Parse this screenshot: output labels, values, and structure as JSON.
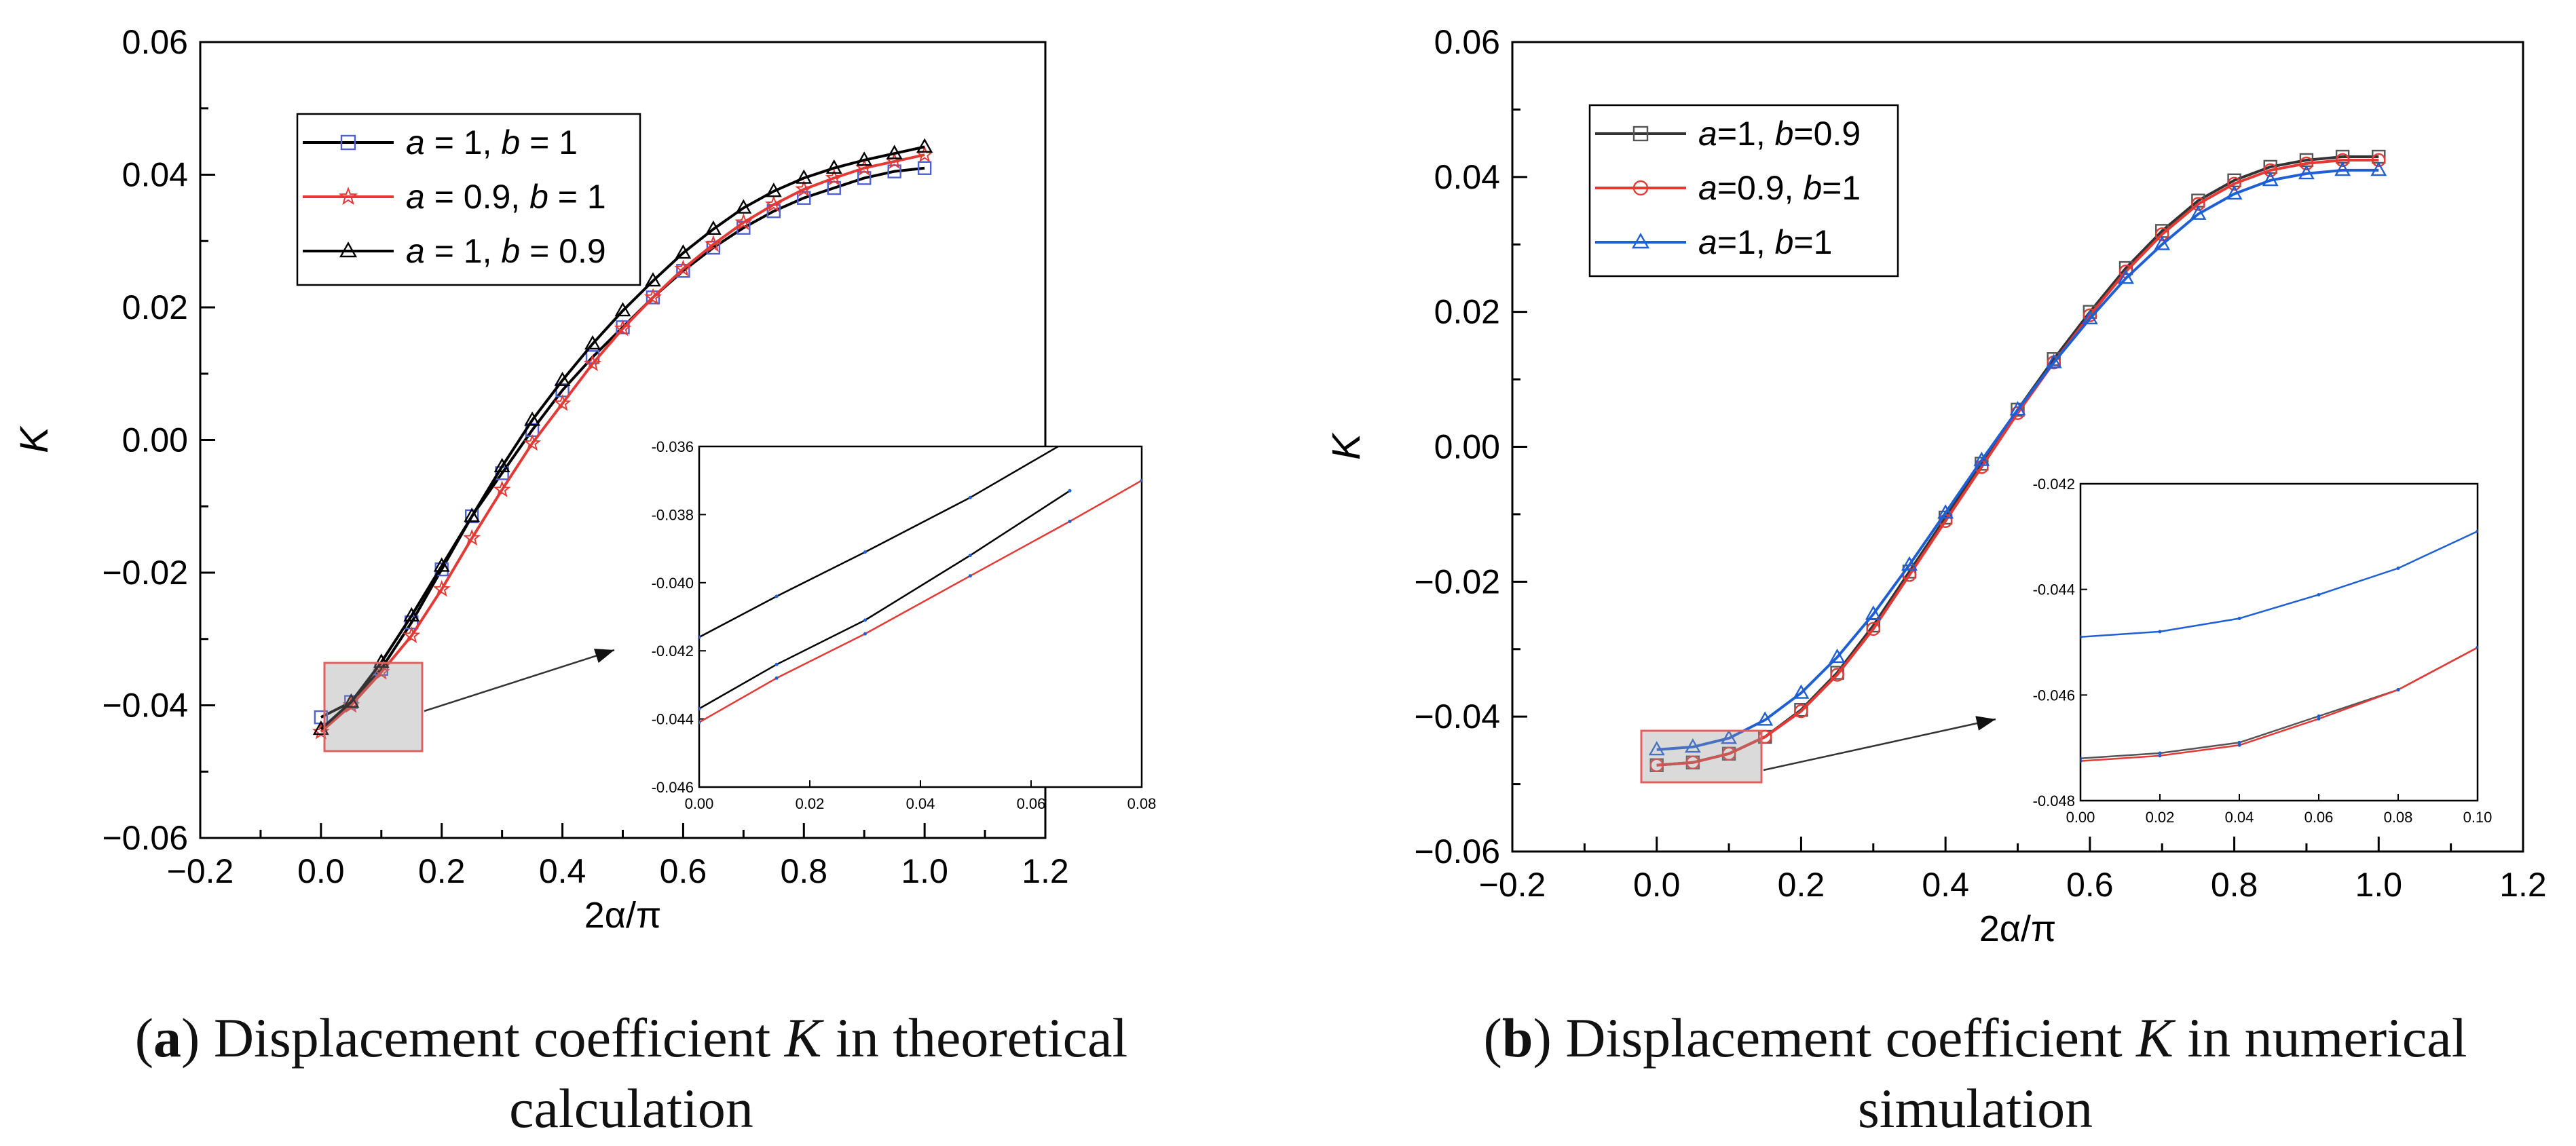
{
  "chart_data": [
    {
      "type": "line",
      "caption": {
        "letter": "a",
        "text_before": "Displacement coefficient ",
        "symbol": "K",
        "text_after": " in theoretical calculation"
      },
      "xlabel": "2α/π",
      "ylabel": "K",
      "xlim": [
        -0.2,
        1.2
      ],
      "ylim": [
        -0.06,
        0.06
      ],
      "xticks": [
        "−0.2",
        "0.0",
        "0.2",
        "0.4",
        "0.6",
        "0.8",
        "1.0",
        "1.2"
      ],
      "yticks": [
        "−0.06",
        "−0.04",
        "−0.02",
        "0.00",
        "0.02",
        "0.04",
        "0.06"
      ],
      "legend_position": "top-left",
      "series": [
        {
          "name": "a = 1, b = 1",
          "name_parts": [
            [
              "a",
              true
            ],
            [
              " = 1, ",
              false
            ],
            [
              "b",
              true
            ],
            [
              " = 1",
              false
            ]
          ],
          "line_color": "#000000",
          "marker": "square",
          "marker_color": "#4f5fd6",
          "x": [
            0.0,
            0.05,
            0.1,
            0.15,
            0.2,
            0.25,
            0.3,
            0.35,
            0.4,
            0.45,
            0.5,
            0.55,
            0.6,
            0.65,
            0.7,
            0.75,
            0.8,
            0.85,
            0.9,
            0.95,
            1.0
          ],
          "y": [
            -0.0418,
            -0.0395,
            -0.0345,
            -0.0275,
            -0.0195,
            -0.0115,
            -0.005,
            0.0015,
            0.0075,
            0.0125,
            0.017,
            0.0215,
            0.0255,
            0.029,
            0.032,
            0.0345,
            0.0365,
            0.038,
            0.0395,
            0.0405,
            0.041
          ]
        },
        {
          "name": "a = 0.9, b = 1",
          "name_parts": [
            [
              "a",
              true
            ],
            [
              " = 0.9, ",
              false
            ],
            [
              "b",
              true
            ],
            [
              " = 1",
              false
            ]
          ],
          "line_color": "#e53935",
          "marker": "star",
          "marker_color": "#e53935",
          "x": [
            0.0,
            0.05,
            0.1,
            0.15,
            0.2,
            0.25,
            0.3,
            0.35,
            0.4,
            0.45,
            0.5,
            0.55,
            0.6,
            0.65,
            0.7,
            0.75,
            0.8,
            0.85,
            0.9,
            0.95,
            1.0
          ],
          "y": [
            -0.044,
            -0.04,
            -0.035,
            -0.0295,
            -0.0225,
            -0.0148,
            -0.0075,
            -0.0005,
            0.0055,
            0.0115,
            0.0168,
            0.0215,
            0.0258,
            0.0295,
            0.0328,
            0.0355,
            0.0378,
            0.0395,
            0.041,
            0.042,
            0.043
          ]
        },
        {
          "name": "a = 1, b = 0.9",
          "name_parts": [
            [
              "a",
              true
            ],
            [
              " = 1, ",
              false
            ],
            [
              "b",
              true
            ],
            [
              " = 0.9",
              false
            ]
          ],
          "line_color": "#000000",
          "marker": "triangle",
          "marker_color": "#000000",
          "x": [
            0.0,
            0.05,
            0.1,
            0.15,
            0.2,
            0.25,
            0.3,
            0.35,
            0.4,
            0.45,
            0.5,
            0.55,
            0.6,
            0.65,
            0.7,
            0.75,
            0.8,
            0.85,
            0.9,
            0.95,
            1.0
          ],
          "y": [
            -0.0436,
            -0.0395,
            -0.0335,
            -0.0265,
            -0.019,
            -0.0115,
            -0.004,
            0.003,
            0.009,
            0.0145,
            0.0195,
            0.024,
            0.0282,
            0.0318,
            0.035,
            0.0375,
            0.0395,
            0.041,
            0.0422,
            0.0432,
            0.0442
          ]
        }
      ],
      "inset": {
        "xlim": [
          0.0,
          0.08
        ],
        "ylim": [
          -0.046,
          -0.036
        ],
        "xticks": [
          "0.00",
          "0.02",
          "0.04",
          "0.06",
          "0.08"
        ],
        "yticks": [
          "-0.046",
          "-0.044",
          "-0.042",
          "-0.040",
          "-0.038",
          "-0.036"
        ],
        "series": [
          {
            "name": "a = 1, b = 1",
            "color": "#000000",
            "x": [
              0.0,
              0.014,
              0.03,
              0.049,
              0.067
            ],
            "y": [
              -0.0416,
              -0.0404,
              -0.0391,
              -0.0375,
              -0.0358
            ]
          },
          {
            "name": "a = 0.9, b = 1",
            "color": "#e53935",
            "x": [
              0.0,
              0.014,
              0.03,
              0.049,
              0.067,
              0.08
            ],
            "y": [
              -0.0441,
              -0.0428,
              -0.0415,
              -0.0398,
              -0.0382,
              -0.037
            ]
          },
          {
            "name": "a = 1, b = 0.9",
            "color": "#000000",
            "x": [
              0.0,
              0.014,
              0.03,
              0.049,
              0.067
            ],
            "y": [
              -0.0437,
              -0.0424,
              -0.0411,
              -0.0392,
              -0.0373
            ]
          }
        ]
      }
    },
    {
      "type": "line",
      "caption": {
        "letter": "b",
        "text_before": "Displacement coefficient ",
        "symbol": "K",
        "text_after": " in numerical simulation"
      },
      "xlabel": "2α/π",
      "ylabel": "K",
      "xlim": [
        -0.2,
        1.2
      ],
      "ylim": [
        -0.06,
        0.06
      ],
      "xticks": [
        "−0.2",
        "0.0",
        "0.2",
        "0.4",
        "0.6",
        "0.8",
        "1.0",
        "1.2"
      ],
      "yticks": [
        "−0.06",
        "−0.04",
        "−0.02",
        "0.00",
        "0.02",
        "0.04",
        "0.06"
      ],
      "legend_position": "top-left",
      "series": [
        {
          "name": "a=1, b=0.9",
          "name_parts": [
            [
              "a",
              true
            ],
            [
              "=1, ",
              false
            ],
            [
              "b",
              true
            ],
            [
              "=0.9",
              false
            ]
          ],
          "line_color": "#333333",
          "marker": "square",
          "marker_color": "#555555",
          "x": [
            0.0,
            0.05,
            0.1,
            0.15,
            0.2,
            0.25,
            0.3,
            0.35,
            0.4,
            0.45,
            0.5,
            0.55,
            0.6,
            0.65,
            0.7,
            0.75,
            0.8,
            0.85,
            0.9,
            0.95,
            1.0
          ],
          "y": [
            -0.0472,
            -0.0468,
            -0.0455,
            -0.043,
            -0.039,
            -0.0335,
            -0.0265,
            -0.0185,
            -0.0105,
            -0.0025,
            0.0055,
            0.013,
            0.02,
            0.0265,
            0.032,
            0.0365,
            0.0395,
            0.0415,
            0.0425,
            0.043,
            0.043
          ]
        },
        {
          "name": "a=0.9, b=1",
          "name_parts": [
            [
              "a",
              true
            ],
            [
              "=0.9, ",
              false
            ],
            [
              "b",
              true
            ],
            [
              "=1",
              false
            ]
          ],
          "line_color": "#e53935",
          "marker": "circle",
          "marker_color": "#e53935",
          "x": [
            0.0,
            0.05,
            0.1,
            0.15,
            0.2,
            0.25,
            0.3,
            0.35,
            0.4,
            0.45,
            0.5,
            0.55,
            0.6,
            0.65,
            0.7,
            0.75,
            0.8,
            0.85,
            0.9,
            0.95,
            1.0
          ],
          "y": [
            -0.0472,
            -0.0468,
            -0.0455,
            -0.043,
            -0.0392,
            -0.0338,
            -0.027,
            -0.019,
            -0.011,
            -0.003,
            0.005,
            0.0125,
            0.0195,
            0.026,
            0.0315,
            0.036,
            0.039,
            0.041,
            0.042,
            0.0425,
            0.0425
          ]
        },
        {
          "name": "a=1, b=1",
          "name_parts": [
            [
              "a",
              true
            ],
            [
              "=1, ",
              false
            ],
            [
              "b",
              true
            ],
            [
              "=1",
              false
            ]
          ],
          "line_color": "#1e5fd6",
          "marker": "triangle",
          "marker_color": "#1e5fd6",
          "x": [
            0.0,
            0.05,
            0.1,
            0.15,
            0.2,
            0.25,
            0.3,
            0.35,
            0.4,
            0.45,
            0.5,
            0.55,
            0.6,
            0.65,
            0.7,
            0.75,
            0.8,
            0.85,
            0.9,
            0.95,
            1.0
          ],
          "y": [
            -0.0449,
            -0.0445,
            -0.0432,
            -0.0405,
            -0.0365,
            -0.0312,
            -0.0248,
            -0.0175,
            -0.0098,
            -0.002,
            0.0055,
            0.0125,
            0.019,
            0.025,
            0.03,
            0.0345,
            0.0375,
            0.0395,
            0.0405,
            0.041,
            0.041
          ]
        }
      ],
      "inset": {
        "xlim": [
          0.0,
          0.1
        ],
        "ylim": [
          -0.048,
          -0.042
        ],
        "xticks": [
          "0.00",
          "0.02",
          "0.04",
          "0.06",
          "0.08",
          "0.10"
        ],
        "yticks": [
          "-0.048",
          "-0.046",
          "-0.044",
          "-0.042"
        ],
        "series": [
          {
            "name": "a=1, b=0.9",
            "color": "#555555",
            "x": [
              0.0,
              0.02,
              0.04,
              0.06,
              0.08,
              0.1
            ],
            "y": [
              -0.0472,
              -0.0471,
              -0.0469,
              -0.0464,
              -0.0459,
              -0.0451
            ]
          },
          {
            "name": "a=0.9, b=1",
            "color": "#e53935",
            "x": [
              0.0,
              0.02,
              0.04,
              0.06,
              0.08,
              0.1
            ],
            "y": [
              -0.04725,
              -0.04715,
              -0.04695,
              -0.04645,
              -0.0459,
              -0.0451
            ]
          },
          {
            "name": "a=1, b=1",
            "color": "#1e5fd6",
            "x": [
              0.0,
              0.02,
              0.04,
              0.06,
              0.08,
              0.1
            ],
            "y": [
              -0.0449,
              -0.0448,
              -0.04455,
              -0.0441,
              -0.0436,
              -0.0429
            ]
          }
        ]
      }
    }
  ]
}
